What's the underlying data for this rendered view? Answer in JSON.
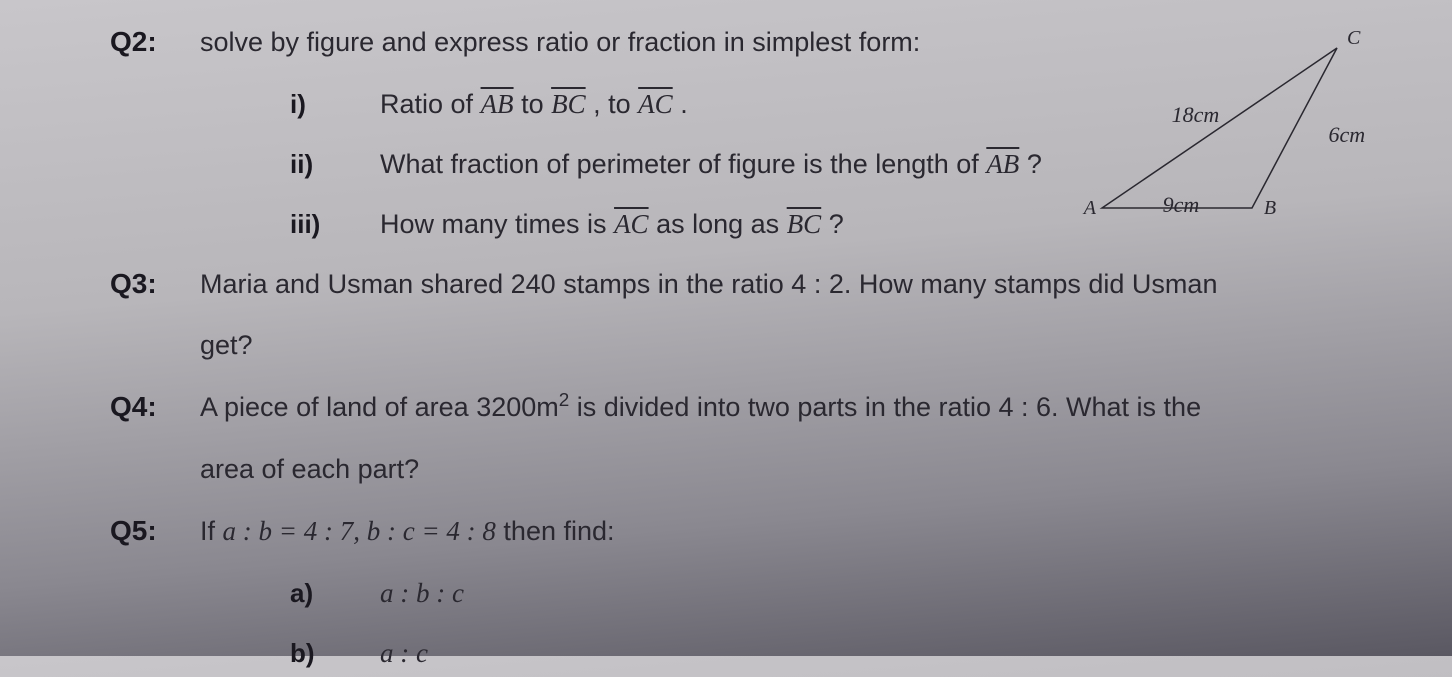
{
  "q2": {
    "label": "Q2:",
    "prompt": "solve by figure and express ratio or fraction in simplest form:",
    "parts": {
      "i": {
        "num": "i)",
        "textA": "Ratio of ",
        "seg1": "AB",
        "mid1": " to ",
        "seg2": "BC",
        "mid2": ", to ",
        "seg3": "AC",
        "tail": " ."
      },
      "ii": {
        "num": "ii)",
        "textA": "What fraction of perimeter of figure is the length of ",
        "seg1": "AB",
        "tail": " ?"
      },
      "iii": {
        "num": "iii)",
        "textA": "How many times is ",
        "seg1": "AC",
        "mid": " as long as ",
        "seg2": "BC",
        "tail": " ?"
      }
    }
  },
  "q3": {
    "label": "Q3:",
    "line1": "Maria and Usman shared 240 stamps in the ratio 4 : 2. How many stamps did Usman",
    "line2": "get?"
  },
  "q4": {
    "label": "Q4:",
    "line1a": "A piece of land of area 3200m",
    "line1b": " is divided into two parts in the ratio 4 : 6. What is the",
    "sup": "2",
    "line2": "area of each part?"
  },
  "q5": {
    "label": "Q5:",
    "promptA": "If ",
    "exprA": "a : b = 4 : 7, b : c = 4 : 8",
    "promptB": " then find:",
    "a": {
      "num": "a)",
      "expr": "a : b : c"
    },
    "b": {
      "num": "b)",
      "expr": "a : c"
    }
  },
  "triangle": {
    "labels": {
      "A": "A",
      "B": "B",
      "C": "C"
    },
    "sides": {
      "AC": "18cm",
      "BC": "6cm",
      "AB": "9cm"
    },
    "points": {
      "A": [
        20,
        180
      ],
      "B": [
        170,
        180
      ],
      "C": [
        255,
        20
      ]
    },
    "stroke": "#2a2830",
    "text_color": "#2a2830",
    "label_font": "20px",
    "side_font": "22px"
  }
}
